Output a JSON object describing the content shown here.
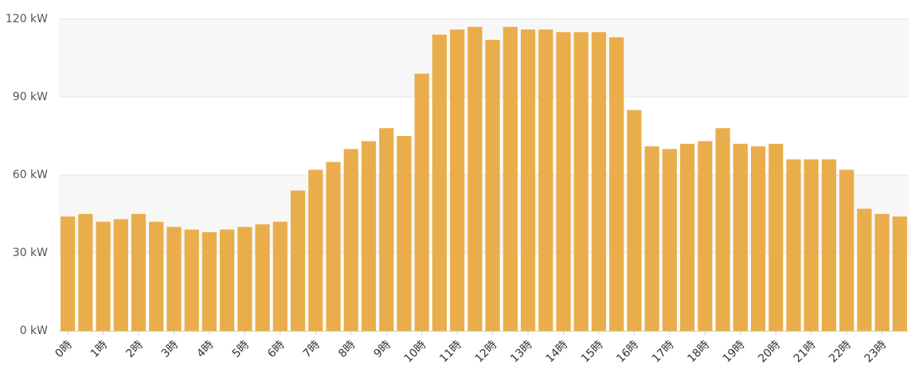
{
  "chart_data": {
    "type": "bar",
    "categories": [
      "0時",
      "",
      "1時",
      "",
      "2時",
      "",
      "3時",
      "",
      "4時",
      "",
      "5時",
      "",
      "6時",
      "",
      "7時",
      "",
      "8時",
      "",
      "9時",
      "",
      "10時",
      "",
      "11時",
      "",
      "12時",
      "",
      "13時",
      "",
      "14時",
      "",
      "15時",
      "",
      "16時",
      "",
      "17時",
      "",
      "18時",
      "",
      "19時",
      "",
      "20時",
      "",
      "21時",
      "",
      "22時",
      "",
      "23時",
      ""
    ],
    "values": [
      44,
      45,
      42,
      43,
      45,
      42,
      40,
      39,
      38,
      39,
      40,
      41,
      42,
      54,
      62,
      65,
      70,
      73,
      78,
      75,
      99,
      114,
      116,
      117,
      112,
      117,
      116,
      116,
      115,
      115,
      115,
      113,
      85,
      71,
      70,
      72,
      73,
      78,
      72,
      71,
      72,
      66,
      66,
      66,
      62,
      47,
      45,
      44
    ],
    "ylim": [
      0,
      120
    ],
    "yticks": [
      "0 kW",
      "30 kW",
      "60 kW",
      "90 kW",
      "120 kW"
    ],
    "ytick_values": [
      0,
      30,
      60,
      90,
      120
    ],
    "grid": true,
    "bar_color": "#e9ae4b",
    "band_color": "#f7f7f7",
    "grid_color": "#e6e6e6"
  }
}
